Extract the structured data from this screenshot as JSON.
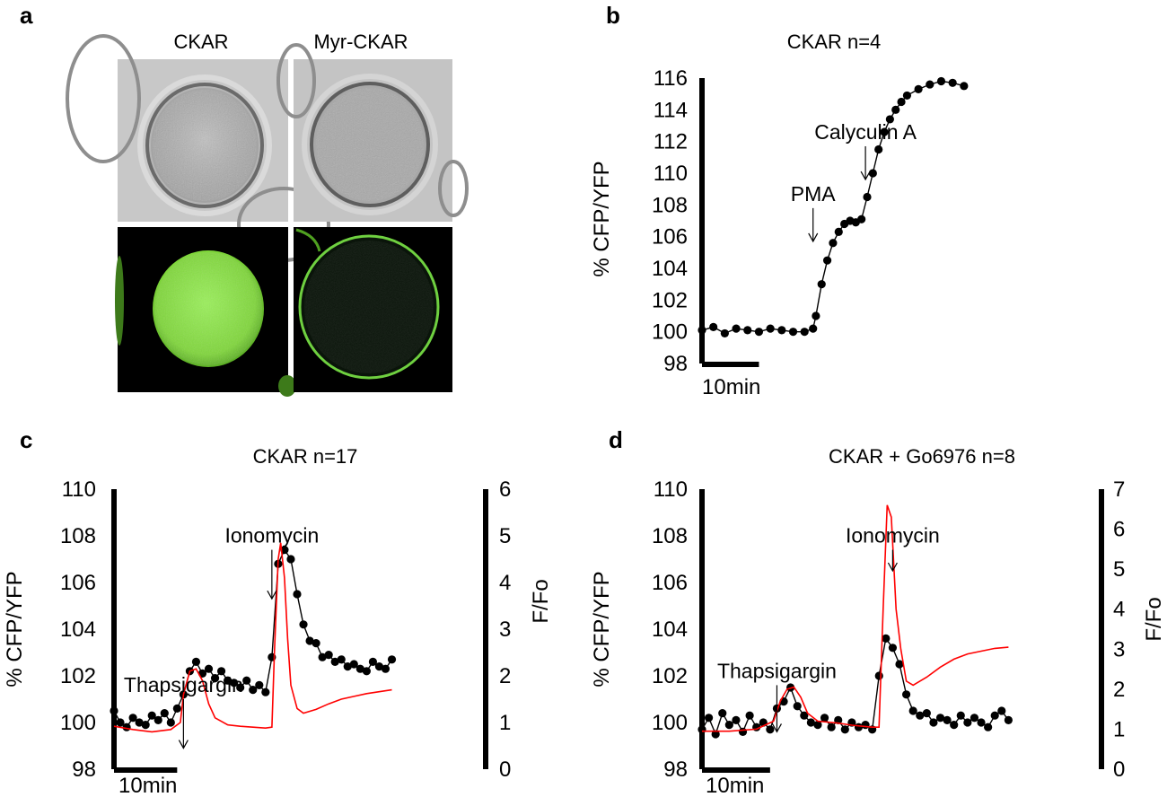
{
  "panel_a": {
    "label": "a",
    "columns": [
      "CKAR",
      "Myr-CKAR"
    ],
    "images": [
      {
        "row": "brightfield",
        "col": "CKAR",
        "colors": {
          "bg": "#c8c8c8",
          "cell": "#b5b5b5",
          "edge": "#6a6a6a"
        }
      },
      {
        "row": "brightfield",
        "col": "Myr-CKAR",
        "colors": {
          "bg": "#c4c4c4",
          "cell": "#a8a8a8",
          "edge": "#5e5e5e"
        }
      },
      {
        "row": "fluorescence",
        "col": "CKAR",
        "colors": {
          "bg": "#000000",
          "cell": "#7fd63a",
          "edge": "#4fa020"
        }
      },
      {
        "row": "fluorescence",
        "col": "Myr-CKAR",
        "colors": {
          "bg": "#000000",
          "cell": "#0a140a",
          "edge": "#6fd040"
        }
      }
    ]
  },
  "chart_data": [
    {
      "panel": "b",
      "type": "scatter",
      "title": "CKAR n=4",
      "ylabel": "% CFP/YFP",
      "yticks": [
        98,
        100,
        102,
        104,
        106,
        108,
        110,
        112,
        114,
        116
      ],
      "ylim": [
        98,
        116
      ],
      "xlim": [
        0,
        58
      ],
      "scale_bar": {
        "label": "10min",
        "minutes": 10
      },
      "annotations": [
        {
          "text": "PMA",
          "x": 19.5,
          "arrow_from": 107.8,
          "arrow_to": 105.7
        },
        {
          "text": "Calyculin A",
          "x": 28.7,
          "arrow_from": 111.7,
          "arrow_to": 109.6
        }
      ],
      "series": [
        {
          "color": "#000000",
          "marker": "dot",
          "points": [
            [
              0,
              100.1
            ],
            [
              2,
              100.3
            ],
            [
              4,
              99.9
            ],
            [
              6,
              100.2
            ],
            [
              8,
              100.1
            ],
            [
              10,
              100.0
            ],
            [
              12,
              100.2
            ],
            [
              14,
              100.1
            ],
            [
              16,
              100.0
            ],
            [
              18,
              100.0
            ],
            [
              19.5,
              100.2
            ],
            [
              20,
              101.0
            ],
            [
              21,
              103.0
            ],
            [
              22,
              104.5
            ],
            [
              23,
              105.6
            ],
            [
              24,
              106.3
            ],
            [
              25,
              106.8
            ],
            [
              26,
              107.0
            ],
            [
              27,
              106.9
            ],
            [
              28,
              107.1
            ],
            [
              29,
              108.5
            ],
            [
              30,
              110.0
            ],
            [
              31,
              111.5
            ],
            [
              32,
              112.6
            ],
            [
              33,
              113.4
            ],
            [
              34,
              114.0
            ],
            [
              35,
              114.5
            ],
            [
              36,
              114.9
            ],
            [
              38,
              115.3
            ],
            [
              40,
              115.6
            ],
            [
              42,
              115.8
            ],
            [
              44,
              115.7
            ],
            [
              46,
              115.5
            ]
          ]
        }
      ]
    },
    {
      "panel": "c",
      "type": "line",
      "title": "CKAR n=17",
      "ylabel": "% CFP/YFP",
      "y2label": "F/Fo",
      "yticks": [
        98,
        100,
        102,
        104,
        106,
        108,
        110
      ],
      "ylim": [
        98,
        110
      ],
      "y2ticks": [
        0,
        1,
        2,
        3,
        4,
        5,
        6
      ],
      "y2lim": [
        0,
        6
      ],
      "xlim": [
        0,
        58
      ],
      "scale_bar": {
        "label": "10min",
        "minutes": 10
      },
      "annotations": [
        {
          "text": "Thapsigargin",
          "x": 11.0,
          "arrow_from": 101.0,
          "arrow_to": 98.9
        },
        {
          "text": "Ionomycin",
          "x": 25.0,
          "arrow_from": 107.4,
          "arrow_to": 105.3
        }
      ],
      "series": [
        {
          "axis": "left",
          "color": "#000000",
          "marker": "dot",
          "points": [
            [
              0,
              100.5
            ],
            [
              1,
              100.0
            ],
            [
              2,
              99.8
            ],
            [
              3,
              100.2
            ],
            [
              4,
              100.0
            ],
            [
              5,
              99.9
            ],
            [
              6,
              100.3
            ],
            [
              7,
              100.1
            ],
            [
              8,
              100.4
            ],
            [
              9,
              100.0
            ],
            [
              10,
              100.6
            ],
            [
              11,
              101.2
            ],
            [
              12,
              102.2
            ],
            [
              13,
              102.6
            ],
            [
              14,
              102.1
            ],
            [
              15,
              102.3
            ],
            [
              16,
              101.9
            ],
            [
              17,
              102.2
            ],
            [
              18,
              101.8
            ],
            [
              19,
              101.7
            ],
            [
              20,
              101.5
            ],
            [
              21,
              101.8
            ],
            [
              22,
              101.4
            ],
            [
              23,
              101.6
            ],
            [
              24,
              101.3
            ],
            [
              25,
              102.8
            ],
            [
              26,
              106.8
            ],
            [
              27,
              107.4
            ],
            [
              28,
              107.0
            ],
            [
              29,
              105.5
            ],
            [
              30,
              104.2
            ],
            [
              31,
              103.5
            ],
            [
              32,
              103.4
            ],
            [
              33,
              102.8
            ],
            [
              34,
              102.9
            ],
            [
              35,
              102.6
            ],
            [
              36,
              102.7
            ],
            [
              37,
              102.4
            ],
            [
              38,
              102.5
            ],
            [
              39,
              102.3
            ],
            [
              40,
              102.2
            ],
            [
              41,
              102.6
            ],
            [
              42,
              102.4
            ],
            [
              43,
              102.3
            ],
            [
              44,
              102.7
            ]
          ]
        },
        {
          "axis": "right",
          "color": "#ff0000",
          "marker": "none",
          "points": [
            [
              0,
              0.92
            ],
            [
              3,
              0.85
            ],
            [
              6,
              0.8
            ],
            [
              9,
              0.85
            ],
            [
              10.5,
              1.0
            ],
            [
              11,
              1.6
            ],
            [
              12,
              2.1
            ],
            [
              13,
              2.15
            ],
            [
              14,
              1.9
            ],
            [
              15,
              1.4
            ],
            [
              16,
              1.1
            ],
            [
              18,
              0.95
            ],
            [
              20,
              0.92
            ],
            [
              22,
              0.9
            ],
            [
              24,
              0.88
            ],
            [
              25,
              0.9
            ],
            [
              25.4,
              2.5
            ],
            [
              26,
              4.5
            ],
            [
              26.4,
              4.85
            ],
            [
              27,
              4.1
            ],
            [
              27.5,
              2.8
            ],
            [
              28,
              1.8
            ],
            [
              29,
              1.3
            ],
            [
              30,
              1.2
            ],
            [
              32,
              1.28
            ],
            [
              34,
              1.4
            ],
            [
              36,
              1.5
            ],
            [
              38,
              1.56
            ],
            [
              40,
              1.62
            ],
            [
              42,
              1.66
            ],
            [
              44,
              1.7
            ]
          ]
        }
      ]
    },
    {
      "panel": "d",
      "type": "line",
      "title": "CKAR + Go6976 n=8",
      "ylabel": "% CFP/YFP",
      "y2label": "F/Fo",
      "yticks": [
        98,
        100,
        102,
        104,
        106,
        108,
        110
      ],
      "ylim": [
        98,
        110
      ],
      "y2ticks": [
        0,
        1,
        2,
        3,
        4,
        5,
        6,
        7
      ],
      "y2lim": [
        0,
        7
      ],
      "xlim": [
        0,
        58
      ],
      "scale_bar": {
        "label": "10min",
        "minutes": 10
      },
      "annotations": [
        {
          "text": "Thapsigargin",
          "x": 11.0,
          "arrow_from": 101.6,
          "arrow_to": 99.6
        },
        {
          "text": "Ionomycin",
          "x": 28.0,
          "arrow_from": 107.4,
          "arrow_to": 106.5
        }
      ],
      "series": [
        {
          "axis": "left",
          "color": "#000000",
          "marker": "dot",
          "points": [
            [
              0,
              99.7
            ],
            [
              1,
              100.2
            ],
            [
              2,
              99.5
            ],
            [
              3,
              100.4
            ],
            [
              4,
              99.9
            ],
            [
              5,
              100.1
            ],
            [
              6,
              99.6
            ],
            [
              7,
              100.3
            ],
            [
              8,
              99.8
            ],
            [
              9,
              100.0
            ],
            [
              10,
              99.7
            ],
            [
              11,
              100.6
            ],
            [
              12,
              100.9
            ],
            [
              13,
              101.5
            ],
            [
              14,
              100.7
            ],
            [
              15,
              100.3
            ],
            [
              16,
              100.0
            ],
            [
              17,
              99.9
            ],
            [
              18,
              100.2
            ],
            [
              19,
              99.8
            ],
            [
              20,
              100.1
            ],
            [
              21,
              99.7
            ],
            [
              22,
              100.0
            ],
            [
              23,
              99.8
            ],
            [
              24,
              99.9
            ],
            [
              25,
              99.7
            ],
            [
              26,
              102.0
            ],
            [
              27,
              103.6
            ],
            [
              28,
              103.2
            ],
            [
              29,
              102.5
            ],
            [
              30,
              101.2
            ],
            [
              31,
              100.5
            ],
            [
              32,
              100.3
            ],
            [
              33,
              100.4
            ],
            [
              34,
              100.0
            ],
            [
              35,
              100.2
            ],
            [
              36,
              100.1
            ],
            [
              37,
              99.9
            ],
            [
              38,
              100.3
            ],
            [
              39,
              100.0
            ],
            [
              40,
              100.2
            ],
            [
              41,
              100.0
            ],
            [
              42,
              99.8
            ],
            [
              43,
              100.3
            ],
            [
              44,
              100.5
            ],
            [
              45,
              100.1
            ]
          ]
        },
        {
          "axis": "right",
          "color": "#ff0000",
          "marker": "none",
          "points": [
            [
              0,
              0.95
            ],
            [
              4,
              0.95
            ],
            [
              8,
              1.0
            ],
            [
              10.5,
              1.2
            ],
            [
              11.5,
              1.7
            ],
            [
              12.5,
              2.0
            ],
            [
              13.5,
              2.05
            ],
            [
              14.5,
              1.8
            ],
            [
              15.5,
              1.4
            ],
            [
              17,
              1.2
            ],
            [
              20,
              1.15
            ],
            [
              22,
              1.1
            ],
            [
              25,
              1.05
            ],
            [
              26,
              1.05
            ],
            [
              26.6,
              4.0
            ],
            [
              27.2,
              6.6
            ],
            [
              27.8,
              6.3
            ],
            [
              28.5,
              4.0
            ],
            [
              29.2,
              3.0
            ],
            [
              30,
              2.2
            ],
            [
              31,
              2.1
            ],
            [
              33,
              2.3
            ],
            [
              35,
              2.55
            ],
            [
              37,
              2.75
            ],
            [
              39,
              2.88
            ],
            [
              41,
              2.95
            ],
            [
              43,
              3.02
            ],
            [
              45,
              3.05
            ]
          ]
        }
      ]
    }
  ]
}
